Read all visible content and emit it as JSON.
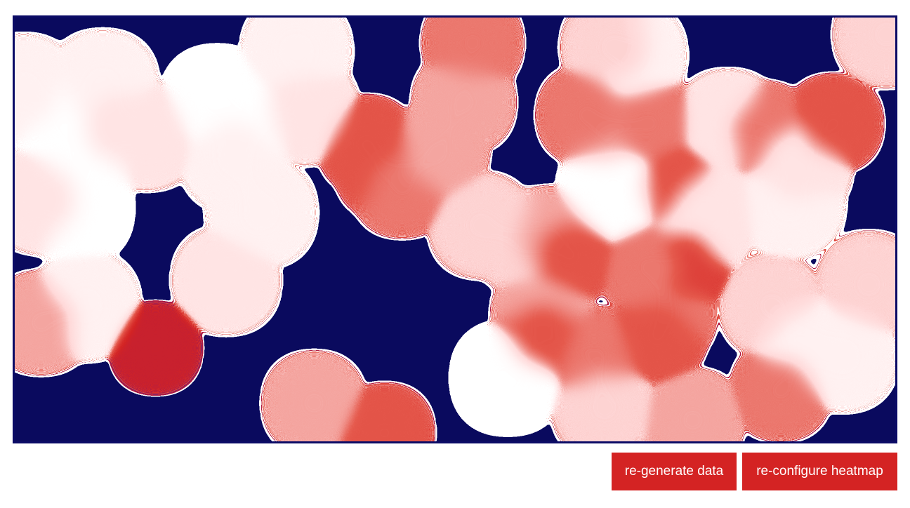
{
  "controls": {
    "regenerate_label": "re-generate data",
    "reconfigure_label": "re-configure heatmap"
  },
  "heatmap": {
    "gradient": {
      "low": "#0b0b5e",
      "mid": "#1a1aa0",
      "high": "#d42323",
      "peak": "#ffffff"
    },
    "hotspots": [
      [
        0.06,
        0.25,
        1.0
      ],
      [
        0.08,
        0.33,
        1.0
      ],
      [
        0.07,
        0.45,
        1.0
      ],
      [
        0.03,
        0.43,
        0.9
      ],
      [
        0.01,
        0.17,
        0.95
      ],
      [
        0.1,
        0.16,
        0.95
      ],
      [
        0.12,
        0.26,
        0.9
      ],
      [
        0.15,
        0.28,
        0.9
      ],
      [
        0.23,
        0.2,
        1.0
      ],
      [
        0.26,
        0.25,
        1.0
      ],
      [
        0.25,
        0.33,
        0.95
      ],
      [
        0.28,
        0.46,
        0.95
      ],
      [
        0.32,
        0.08,
        0.95
      ],
      [
        0.33,
        0.22,
        0.9
      ],
      [
        0.4,
        0.3,
        0.7
      ],
      [
        0.42,
        0.36,
        0.7
      ],
      [
        0.44,
        0.4,
        0.75
      ],
      [
        0.48,
        0.32,
        0.8
      ],
      [
        0.51,
        0.2,
        0.8
      ],
      [
        0.52,
        0.06,
        0.75
      ],
      [
        0.53,
        0.49,
        0.85
      ],
      [
        0.58,
        0.53,
        0.85
      ],
      [
        0.61,
        0.52,
        0.8
      ],
      [
        0.6,
        0.7,
        0.8
      ],
      [
        0.56,
        0.85,
        1.0
      ],
      [
        0.6,
        0.75,
        0.7
      ],
      [
        0.66,
        0.8,
        0.75
      ],
      [
        0.67,
        0.92,
        0.85
      ],
      [
        0.68,
        0.41,
        1.0
      ],
      [
        0.67,
        0.26,
        0.8
      ],
      [
        0.65,
        0.23,
        0.75
      ],
      [
        0.7,
        0.09,
        0.95
      ],
      [
        0.68,
        0.07,
        0.85
      ],
      [
        0.75,
        0.4,
        0.7
      ],
      [
        0.78,
        0.49,
        0.9
      ],
      [
        0.74,
        0.7,
        0.75
      ],
      [
        0.73,
        0.75,
        0.7
      ],
      [
        0.77,
        0.95,
        0.8
      ],
      [
        0.79,
        0.46,
        0.9
      ],
      [
        0.81,
        0.25,
        0.9
      ],
      [
        0.85,
        0.27,
        0.75
      ],
      [
        0.88,
        0.44,
        0.95
      ],
      [
        0.89,
        0.35,
        0.9
      ],
      [
        0.86,
        0.68,
        0.85
      ],
      [
        0.9,
        0.78,
        0.95
      ],
      [
        0.94,
        0.8,
        0.95
      ],
      [
        0.97,
        0.63,
        0.85
      ],
      [
        0.99,
        0.04,
        0.85
      ],
      [
        0.93,
        0.25,
        0.7
      ],
      [
        0.08,
        0.68,
        0.95
      ],
      [
        0.03,
        0.72,
        0.8
      ],
      [
        0.24,
        0.62,
        0.9
      ],
      [
        0.34,
        0.91,
        0.8
      ],
      [
        0.42,
        0.98,
        0.7
      ],
      [
        0.72,
        0.25,
        0.75
      ],
      [
        0.63,
        0.56,
        0.7
      ],
      [
        0.76,
        0.58,
        0.65
      ],
      [
        0.87,
        0.88,
        0.75
      ],
      [
        0.72,
        0.59,
        0.75
      ],
      [
        0.16,
        0.78,
        0.55
      ]
    ]
  }
}
